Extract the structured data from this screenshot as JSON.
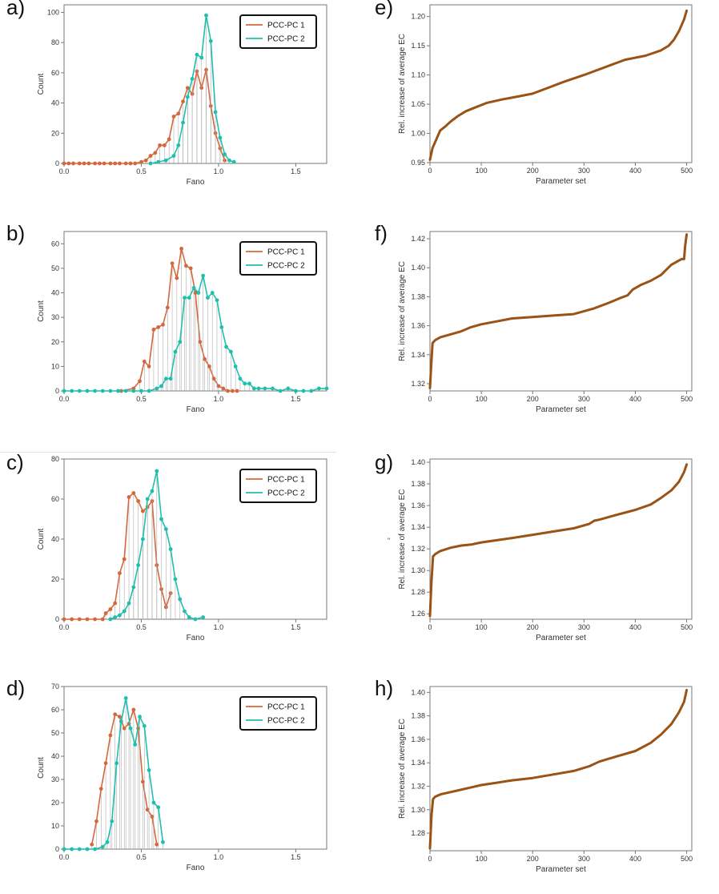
{
  "colors": {
    "pc1": "#d4683c",
    "pc2": "#1fbfae",
    "ec": "#9a5314",
    "stem": "#aaaaaa"
  },
  "chart_data": [
    {
      "type": "line",
      "panel_label": "a)",
      "xlabel": "Fano",
      "ylabel": "Count",
      "xlim": [
        0,
        1.7
      ],
      "ylim": [
        0,
        105
      ],
      "xticks": [
        "0.0",
        "0.5",
        "1.0",
        "1.5"
      ],
      "xtick_values": [
        0,
        0.5,
        1.0,
        1.5
      ],
      "yticks": [
        "0",
        "20",
        "40",
        "60",
        "80",
        "100"
      ],
      "ytick_values": [
        0,
        20,
        40,
        60,
        80,
        100
      ],
      "legend": [
        "PCC-PC 1",
        "PCC-PC 2"
      ],
      "series": [
        {
          "name": "PCC-PC 1",
          "x": [
            0,
            0.03,
            0.06,
            0.1,
            0.13,
            0.16,
            0.2,
            0.23,
            0.26,
            0.3,
            0.33,
            0.36,
            0.4,
            0.43,
            0.46,
            0.5,
            0.53,
            0.56,
            0.59,
            0.62,
            0.65,
            0.68,
            0.71,
            0.74,
            0.77,
            0.8,
            0.83,
            0.86,
            0.89,
            0.92,
            0.95,
            0.98,
            1.01,
            1.04
          ],
          "values": [
            0,
            0,
            0,
            0,
            0,
            0,
            0,
            0,
            0,
            0,
            0,
            0,
            0,
            0,
            0,
            1,
            2,
            5,
            7,
            12,
            12,
            16,
            31,
            33,
            41,
            50,
            46,
            61,
            50,
            62,
            38,
            20,
            10,
            2
          ]
        },
        {
          "name": "PCC-PC 2",
          "x": [
            0.56,
            0.61,
            0.66,
            0.71,
            0.74,
            0.77,
            0.8,
            0.83,
            0.86,
            0.89,
            0.92,
            0.95,
            0.98,
            1.01,
            1.04,
            1.07,
            1.1
          ],
          "values": [
            0,
            1,
            2,
            5,
            12,
            27,
            44,
            56,
            72,
            70,
            98,
            81,
            34,
            17,
            6,
            2,
            1
          ]
        }
      ]
    },
    {
      "type": "line",
      "panel_label": "b)",
      "xlabel": "Fano",
      "ylabel": "Count",
      "xlim": [
        0,
        1.7
      ],
      "ylim": [
        0,
        65
      ],
      "xticks": [
        "0.0",
        "0.5",
        "1.0",
        "1.5"
      ],
      "xtick_values": [
        0,
        0.5,
        1.0,
        1.5
      ],
      "yticks": [
        "0",
        "10",
        "20",
        "30",
        "40",
        "50",
        "60"
      ],
      "ytick_values": [
        0,
        10,
        20,
        30,
        40,
        50,
        60
      ],
      "legend": [
        "PCC-PC 1",
        "PCC-PC 2"
      ],
      "series": [
        {
          "name": "PCC-PC 1",
          "x": [
            0.37,
            0.45,
            0.49,
            0.52,
            0.55,
            0.58,
            0.61,
            0.64,
            0.67,
            0.7,
            0.73,
            0.76,
            0.79,
            0.82,
            0.85,
            0.88,
            0.91,
            0.94,
            0.97,
            1.0,
            1.03,
            1.06,
            1.09,
            1.12
          ],
          "values": [
            0,
            1,
            4,
            12,
            10,
            25,
            26,
            27,
            34,
            52,
            46,
            58,
            51,
            50,
            40,
            20,
            13,
            10,
            5,
            2,
            1,
            0,
            0,
            0
          ]
        },
        {
          "name": "PCC-PC 2",
          "x": [
            0.0,
            0.05,
            0.1,
            0.15,
            0.2,
            0.25,
            0.3,
            0.35,
            0.4,
            0.45,
            0.5,
            0.55,
            0.6,
            0.63,
            0.66,
            0.69,
            0.72,
            0.75,
            0.78,
            0.81,
            0.84,
            0.87,
            0.9,
            0.93,
            0.96,
            0.99,
            1.02,
            1.05,
            1.08,
            1.11,
            1.14,
            1.17,
            1.2,
            1.23,
            1.26,
            1.3,
            1.35,
            1.4,
            1.45,
            1.5,
            1.55,
            1.6,
            1.65,
            1.7
          ],
          "values": [
            0,
            0,
            0,
            0,
            0,
            0,
            0,
            0,
            0,
            0,
            0,
            0,
            1,
            2,
            5,
            5,
            16,
            20,
            38,
            38,
            42,
            40,
            47,
            38,
            40,
            37,
            26,
            18,
            16,
            10,
            5,
            3,
            3,
            1,
            1,
            1,
            1,
            0,
            1,
            0,
            0,
            0,
            1,
            1
          ]
        }
      ]
    },
    {
      "type": "line",
      "panel_label": "c)",
      "xlabel": "Fano",
      "ylabel": "Count",
      "xlim": [
        0,
        1.7
      ],
      "ylim": [
        0,
        80
      ],
      "xticks": [
        "0.0",
        "0.5",
        "1.0",
        "1.5"
      ],
      "xtick_values": [
        0,
        0.5,
        1.0,
        1.5
      ],
      "yticks": [
        "0",
        "20",
        "40",
        "60",
        "80"
      ],
      "ytick_values": [
        0,
        20,
        40,
        60,
        80
      ],
      "legend": [
        "PCC-PC 1",
        "PCC-PC 2"
      ],
      "series": [
        {
          "name": "PCC-PC 1",
          "x": [
            0,
            0.05,
            0.1,
            0.15,
            0.2,
            0.25,
            0.27,
            0.3,
            0.33,
            0.36,
            0.39,
            0.42,
            0.45,
            0.48,
            0.51,
            0.54,
            0.57,
            0.6,
            0.63,
            0.66,
            0.69
          ],
          "values": [
            0,
            0,
            0,
            0,
            0,
            0,
            3,
            5,
            8,
            23,
            30,
            61,
            63,
            59,
            54,
            56,
            59,
            27,
            15,
            6,
            13
          ]
        },
        {
          "name": "PCC-PC 2",
          "x": [
            0.3,
            0.33,
            0.36,
            0.39,
            0.42,
            0.45,
            0.48,
            0.51,
            0.54,
            0.57,
            0.6,
            0.63,
            0.66,
            0.69,
            0.72,
            0.75,
            0.78,
            0.81,
            0.85,
            0.9
          ],
          "values": [
            0,
            1,
            2,
            4,
            8,
            16,
            27,
            40,
            60,
            64,
            74,
            50,
            45,
            35,
            20,
            10,
            4,
            1,
            0,
            1
          ]
        }
      ]
    },
    {
      "type": "line",
      "panel_label": "d)",
      "xlabel": "Fano",
      "ylabel": "Count",
      "xlim": [
        0,
        1.7
      ],
      "ylim": [
        0,
        70
      ],
      "xticks": [
        "0.0",
        "0.5",
        "1.0",
        "1.5"
      ],
      "xtick_values": [
        0,
        0.5,
        1.0,
        1.5
      ],
      "yticks": [
        "0",
        "10",
        "20",
        "30",
        "40",
        "50",
        "60",
        "70"
      ],
      "ytick_values": [
        0,
        10,
        20,
        30,
        40,
        50,
        60,
        70
      ],
      "legend": [
        "PCC-PC 1",
        "PCC-PC 2"
      ],
      "series": [
        {
          "name": "PCC-PC 1",
          "x": [
            0.18,
            0.21,
            0.24,
            0.27,
            0.3,
            0.33,
            0.36,
            0.39,
            0.42,
            0.45,
            0.48,
            0.51,
            0.54,
            0.57,
            0.6
          ],
          "values": [
            2,
            12,
            26,
            37,
            49,
            58,
            57,
            52,
            54,
            60,
            52,
            29,
            17,
            14,
            2
          ]
        },
        {
          "name": "PCC-PC 2",
          "x": [
            0,
            0.05,
            0.1,
            0.15,
            0.2,
            0.25,
            0.28,
            0.31,
            0.34,
            0.37,
            0.4,
            0.43,
            0.46,
            0.49,
            0.52,
            0.55,
            0.58,
            0.61,
            0.64
          ],
          "values": [
            0,
            0,
            0,
            0,
            0,
            1,
            3,
            12,
            37,
            55,
            65,
            52,
            45,
            57,
            53,
            34,
            20,
            18,
            3
          ]
        }
      ]
    },
    {
      "type": "line",
      "panel_label": "e)",
      "xlabel": "Parameter set",
      "ylabel": "Rel. increase of average EC",
      "xlim": [
        0,
        510
      ],
      "ylim": [
        0.95,
        1.22
      ],
      "xticks": [
        "0",
        "100",
        "200",
        "300",
        "400",
        "500"
      ],
      "xtick_values": [
        0,
        100,
        200,
        300,
        400,
        500
      ],
      "yticks": [
        "0.95",
        "1.00",
        "1.05",
        "1.10",
        "1.15",
        "1.20"
      ],
      "ytick_values": [
        0.95,
        1.0,
        1.05,
        1.1,
        1.15,
        1.2
      ],
      "series": [
        {
          "name": "EC",
          "x": [
            0,
            5,
            10,
            15,
            20,
            30,
            40,
            55,
            70,
            90,
            110,
            140,
            170,
            200,
            230,
            260,
            300,
            340,
            380,
            420,
            450,
            465,
            475,
            485,
            495,
            500
          ],
          "values": [
            0.955,
            0.975,
            0.985,
            0.995,
            1.005,
            1.012,
            1.02,
            1.03,
            1.038,
            1.045,
            1.052,
            1.058,
            1.063,
            1.068,
            1.078,
            1.088,
            1.1,
            1.113,
            1.126,
            1.133,
            1.142,
            1.15,
            1.16,
            1.175,
            1.195,
            1.21
          ]
        }
      ]
    },
    {
      "type": "line",
      "panel_label": "f)",
      "xlabel": "Parameter set",
      "ylabel": "Rel. increase of average EC",
      "xlim": [
        0,
        510
      ],
      "ylim": [
        1.315,
        1.425
      ],
      "xticks": [
        "0",
        "100",
        "200",
        "300",
        "400",
        "500"
      ],
      "xtick_values": [
        0,
        100,
        200,
        300,
        400,
        500
      ],
      "yticks": [
        "1.32",
        "1.34",
        "1.36",
        "1.38",
        "1.40",
        "1.42"
      ],
      "ytick_values": [
        1.32,
        1.34,
        1.36,
        1.38,
        1.4,
        1.42
      ],
      "series": [
        {
          "name": "EC",
          "x": [
            0,
            2,
            5,
            10,
            20,
            40,
            60,
            80,
            100,
            130,
            160,
            200,
            240,
            280,
            320,
            350,
            370,
            385,
            395,
            410,
            430,
            450,
            470,
            490,
            495,
            497,
            500
          ],
          "values": [
            1.317,
            1.33,
            1.348,
            1.35,
            1.352,
            1.354,
            1.356,
            1.359,
            1.361,
            1.363,
            1.365,
            1.366,
            1.367,
            1.368,
            1.372,
            1.376,
            1.379,
            1.381,
            1.385,
            1.388,
            1.391,
            1.395,
            1.402,
            1.406,
            1.406,
            1.415,
            1.423
          ]
        }
      ]
    },
    {
      "type": "line",
      "panel_label": "g)",
      "xlabel": "Parameter set",
      "ylabel": "Rel. increase of average EC",
      "xlim": [
        0,
        510
      ],
      "ylim": [
        1.255,
        1.403
      ],
      "xticks": [
        "0",
        "100",
        "200",
        "300",
        "400",
        "500"
      ],
      "xtick_values": [
        0,
        100,
        200,
        300,
        400,
        500
      ],
      "yticks": [
        "1.26",
        "1.28",
        "1.30",
        "1.32",
        "1.34",
        "1.36",
        "1.38",
        "1.40"
      ],
      "ytick_values": [
        1.26,
        1.28,
        1.3,
        1.32,
        1.34,
        1.36,
        1.38,
        1.4
      ],
      "annotation": "\"",
      "series": [
        {
          "name": "EC",
          "x": [
            0,
            3,
            6,
            10,
            20,
            40,
            60,
            80,
            100,
            130,
            160,
            200,
            240,
            280,
            310,
            320,
            330,
            360,
            400,
            430,
            450,
            470,
            485,
            495,
            500
          ],
          "values": [
            1.258,
            1.29,
            1.313,
            1.315,
            1.318,
            1.321,
            1.323,
            1.324,
            1.326,
            1.328,
            1.33,
            1.333,
            1.336,
            1.339,
            1.343,
            1.346,
            1.347,
            1.351,
            1.356,
            1.361,
            1.367,
            1.374,
            1.382,
            1.391,
            1.398
          ]
        }
      ]
    },
    {
      "type": "line",
      "panel_label": "h)",
      "xlabel": "Parameter set",
      "ylabel": "Rel. increase of average EC",
      "xlim": [
        0,
        510
      ],
      "ylim": [
        1.265,
        1.405
      ],
      "xticks": [
        "0",
        "100",
        "200",
        "300",
        "400",
        "500"
      ],
      "xtick_values": [
        0,
        100,
        200,
        300,
        400,
        500
      ],
      "yticks": [
        "1.28",
        "1.30",
        "1.32",
        "1.34",
        "1.36",
        "1.38",
        "1.40"
      ],
      "ytick_values": [
        1.28,
        1.3,
        1.32,
        1.34,
        1.36,
        1.38,
        1.4
      ],
      "series": [
        {
          "name": "EC",
          "x": [
            0,
            3,
            6,
            10,
            20,
            40,
            60,
            80,
            100,
            130,
            160,
            200,
            240,
            280,
            310,
            330,
            360,
            400,
            430,
            450,
            470,
            485,
            495,
            500
          ],
          "values": [
            1.267,
            1.295,
            1.309,
            1.311,
            1.313,
            1.315,
            1.317,
            1.319,
            1.321,
            1.323,
            1.325,
            1.327,
            1.33,
            1.333,
            1.337,
            1.341,
            1.345,
            1.35,
            1.357,
            1.364,
            1.373,
            1.383,
            1.392,
            1.402
          ]
        }
      ]
    }
  ]
}
